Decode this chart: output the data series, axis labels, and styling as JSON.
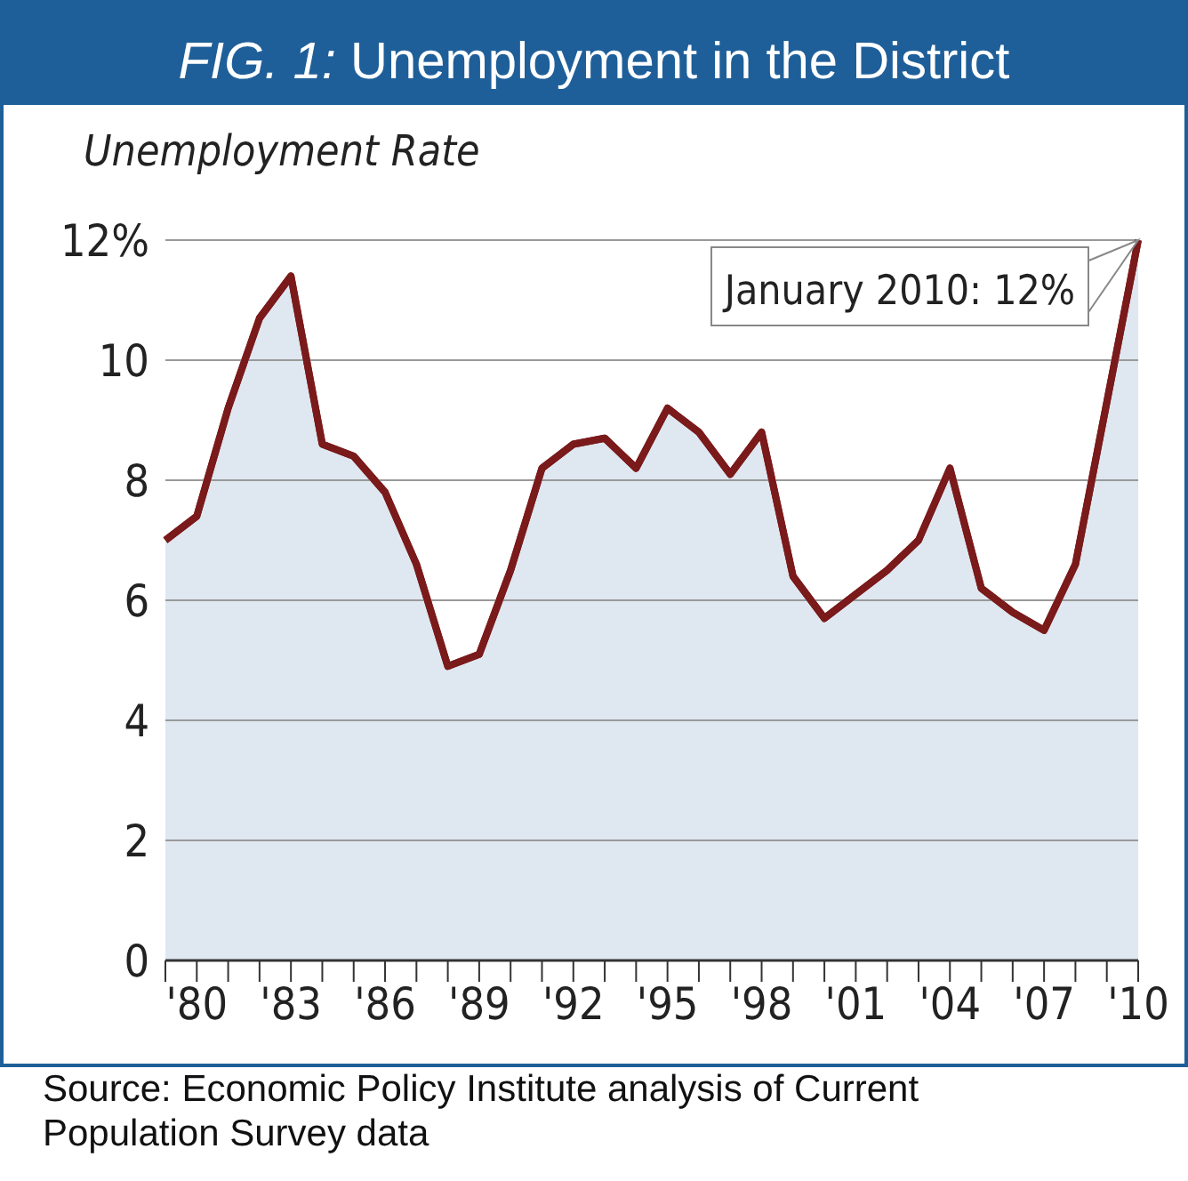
{
  "chart_data": {
    "type": "area",
    "title": "FIG. 1: Unemployment in the District",
    "ylabel": "Unemployment Rate",
    "x": [
      1979,
      1980,
      1981,
      1982,
      1983,
      1984,
      1985,
      1986,
      1987,
      1988,
      1989,
      1990,
      1991,
      1992,
      1993,
      1994,
      1995,
      1996,
      1997,
      1998,
      1999,
      2000,
      2001,
      2002,
      2003,
      2004,
      2005,
      2006,
      2007,
      2008,
      2009,
      2010
    ],
    "series": [
      {
        "color": "#7a1a1a",
        "values": [
          7.0,
          7.4,
          9.2,
          10.7,
          11.4,
          8.6,
          8.4,
          7.8,
          6.6,
          4.9,
          5.1,
          6.5,
          8.2,
          8.6,
          8.7,
          8.2,
          9.2,
          8.8,
          8.1,
          8.8,
          6.4,
          5.7,
          6.1,
          6.5,
          7.0,
          8.2,
          6.2,
          5.8,
          5.5,
          6.6,
          9.3,
          12.0
        ]
      }
    ],
    "xlim": [
      1979,
      2010
    ],
    "xticks": [
      {
        "value": 1979,
        "label": null
      },
      {
        "value": 1980,
        "label": "'80"
      },
      {
        "value": 1981,
        "label": null
      },
      {
        "value": 1982,
        "label": null
      },
      {
        "value": 1983,
        "label": "'83"
      },
      {
        "value": 1984,
        "label": null
      },
      {
        "value": 1985,
        "label": null
      },
      {
        "value": 1986,
        "label": "'86"
      },
      {
        "value": 1987,
        "label": null
      },
      {
        "value": 1988,
        "label": null
      },
      {
        "value": 1989,
        "label": "'89"
      },
      {
        "value": 1990,
        "label": null
      },
      {
        "value": 1991,
        "label": null
      },
      {
        "value": 1992,
        "label": "'92"
      },
      {
        "value": 1993,
        "label": null
      },
      {
        "value": 1994,
        "label": null
      },
      {
        "value": 1995,
        "label": "'95"
      },
      {
        "value": 1996,
        "label": null
      },
      {
        "value": 1997,
        "label": null
      },
      {
        "value": 1998,
        "label": "'98"
      },
      {
        "value": 1999,
        "label": null
      },
      {
        "value": 2000,
        "label": null
      },
      {
        "value": 2001,
        "label": "'01"
      },
      {
        "value": 2002,
        "label": null
      },
      {
        "value": 2003,
        "label": null
      },
      {
        "value": 2004,
        "label": "'04"
      },
      {
        "value": 2005,
        "label": null
      },
      {
        "value": 2006,
        "label": null
      },
      {
        "value": 2007,
        "label": "'07"
      },
      {
        "value": 2008,
        "label": null
      },
      {
        "value": 2009,
        "label": null
      },
      {
        "value": 2010,
        "label": "'10"
      }
    ],
    "ylim": [
      0,
      12
    ],
    "yticks": [
      0,
      2,
      4,
      6,
      8,
      10,
      {
        "value": 12,
        "label": "12%"
      }
    ],
    "grid": "y",
    "annotations": [
      {
        "text": "January 2010: 12%",
        "x": 2010,
        "y": 12
      },
      "Source: Economic Policy Institute analysis of Current Population Survey data"
    ]
  }
}
